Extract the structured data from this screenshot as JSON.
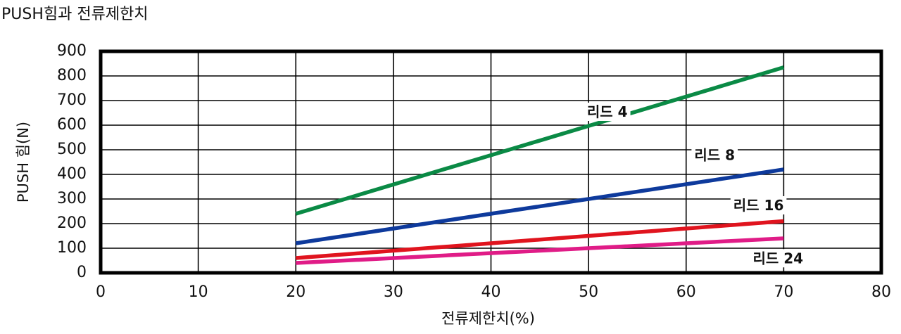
{
  "title": "PUSH힘과 전류제한치",
  "chart_data": {
    "type": "line",
    "xlabel": "전류제한치(%)",
    "ylabel": "PUSH 힘(N)",
    "xlim": [
      0,
      80
    ],
    "ylim": [
      0,
      900
    ],
    "x_ticks": [
      "0",
      "10",
      "20",
      "30",
      "40",
      "50",
      "60",
      "70",
      "80"
    ],
    "y_ticks": [
      "0",
      "100",
      "200",
      "300",
      "400",
      "500",
      "600",
      "700",
      "800",
      "900"
    ],
    "grid": true,
    "series": [
      {
        "name": "리드 4",
        "color": "#0a8a45",
        "x": [
          20,
          70
        ],
        "y": [
          240,
          835
        ]
      },
      {
        "name": "리드 8",
        "color": "#0e3a9c",
        "x": [
          20,
          70
        ],
        "y": [
          120,
          420
        ]
      },
      {
        "name": "리드 16",
        "color": "#e0141e",
        "x": [
          20,
          70
        ],
        "y": [
          60,
          210
        ]
      },
      {
        "name": "리드 24",
        "color": "#e01c87",
        "x": [
          20,
          70
        ],
        "y": [
          40,
          140
        ]
      }
    ]
  }
}
